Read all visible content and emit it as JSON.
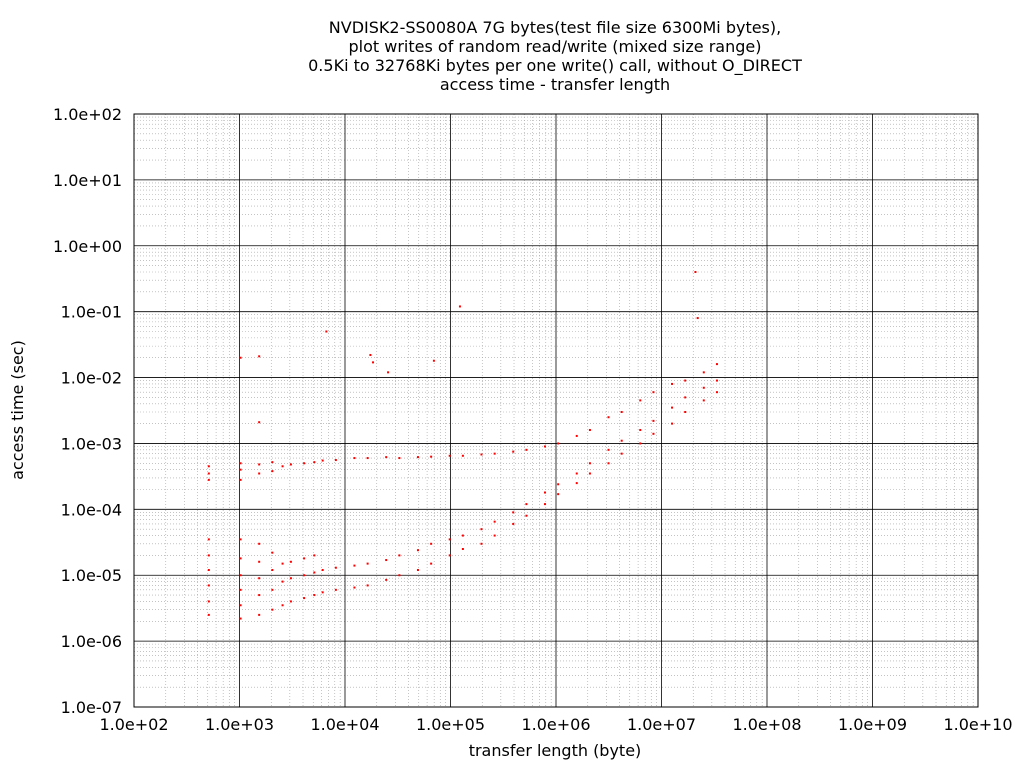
{
  "chart_data": {
    "type": "scatter",
    "title_lines": [
      "NVDISK2-SS0080A 7G bytes(test file size 6300Mi bytes),",
      "plot writes of random read/write (mixed size range)",
      "0.5Ki to 32768Ki bytes per one write() call, without O_DIRECT",
      "access time - transfer length"
    ],
    "xlabel": "transfer length (byte)",
    "ylabel": "access time (sec)",
    "x_scale": "log",
    "y_scale": "log",
    "xlim": [
      100,
      10000000000
    ],
    "ylim": [
      1e-07,
      100
    ],
    "x_tick_values": [
      100,
      1000,
      10000,
      100000,
      1000000,
      10000000,
      100000000,
      1000000000,
      10000000000
    ],
    "x_tick_labels": [
      "1.0e+02",
      "1.0e+03",
      "1.0e+04",
      "1.0e+05",
      "1.0e+06",
      "1.0e+07",
      "1.0e+08",
      "1.0e+09",
      "1.0e+10"
    ],
    "y_tick_values": [
      1e-07,
      1e-06,
      1e-05,
      0.0001,
      0.001,
      0.01,
      0.1,
      1,
      10,
      100
    ],
    "y_tick_labels": [
      "1.0e-07",
      "1.0e-06",
      "1.0e-05",
      "1.0e-04",
      "1.0e-03",
      "1.0e-02",
      "1.0e-01",
      "1.0e+00",
      "1.0e+01",
      "1.0e+02"
    ],
    "grid": true,
    "minor_grid": true,
    "point_color": "#ff0000",
    "series": [
      {
        "points": [
          [
            512,
            2.5e-06
          ],
          [
            512,
            4e-06
          ],
          [
            512,
            7e-06
          ],
          [
            512,
            1.2e-05
          ],
          [
            512,
            2e-05
          ],
          [
            512,
            3.5e-05
          ],
          [
            512,
            0.00028
          ],
          [
            512,
            0.00035
          ],
          [
            512,
            0.00045
          ],
          [
            1024,
            2.2e-06
          ],
          [
            1024,
            3.5e-06
          ],
          [
            1024,
            6e-06
          ],
          [
            1024,
            1e-05
          ],
          [
            1024,
            1.8e-05
          ],
          [
            1024,
            3.5e-05
          ],
          [
            1024,
            0.00028
          ],
          [
            1024,
            0.0004
          ],
          [
            1024,
            0.0005
          ],
          [
            1024,
            0.02
          ],
          [
            1536,
            2.5e-06
          ],
          [
            1536,
            5e-06
          ],
          [
            1536,
            9e-06
          ],
          [
            1536,
            1.6e-05
          ],
          [
            1536,
            3e-05
          ],
          [
            1536,
            0.00035
          ],
          [
            1536,
            0.00048
          ],
          [
            1536,
            0.0021
          ],
          [
            1536,
            0.021
          ],
          [
            2048,
            3e-06
          ],
          [
            2048,
            6e-06
          ],
          [
            2048,
            1.2e-05
          ],
          [
            2048,
            2.2e-05
          ],
          [
            2048,
            0.00038
          ],
          [
            2048,
            0.00052
          ],
          [
            2560,
            3.5e-06
          ],
          [
            2560,
            8e-06
          ],
          [
            2560,
            1.5e-05
          ],
          [
            2560,
            0.00045
          ],
          [
            3072,
            4e-06
          ],
          [
            3072,
            9e-06
          ],
          [
            3072,
            1.6e-05
          ],
          [
            3072,
            0.00048
          ],
          [
            4096,
            4.5e-06
          ],
          [
            4096,
            1e-05
          ],
          [
            4096,
            1.8e-05
          ],
          [
            4096,
            0.0005
          ],
          [
            5120,
            5e-06
          ],
          [
            5120,
            1.1e-05
          ],
          [
            5120,
            2e-05
          ],
          [
            5120,
            0.00052
          ],
          [
            6144,
            5.5e-06
          ],
          [
            6144,
            1.2e-05
          ],
          [
            6144,
            0.00055
          ],
          [
            6656,
            0.05
          ],
          [
            8192,
            6e-06
          ],
          [
            8192,
            1.3e-05
          ],
          [
            8192,
            0.00056
          ],
          [
            12288,
            6.5e-06
          ],
          [
            12288,
            1.4e-05
          ],
          [
            12288,
            0.0006
          ],
          [
            16384,
            7e-06
          ],
          [
            16384,
            1.5e-05
          ],
          [
            16384,
            0.0006
          ],
          [
            17408,
            0.022
          ],
          [
            18432,
            0.017
          ],
          [
            24576,
            8.5e-06
          ],
          [
            24576,
            1.7e-05
          ],
          [
            24576,
            0.00062
          ],
          [
            25600,
            0.012
          ],
          [
            32768,
            1e-05
          ],
          [
            32768,
            2e-05
          ],
          [
            32768,
            0.0006
          ],
          [
            49152,
            1.2e-05
          ],
          [
            49152,
            2.4e-05
          ],
          [
            49152,
            0.00062
          ],
          [
            65536,
            1.5e-05
          ],
          [
            65536,
            3e-05
          ],
          [
            65536,
            0.00063
          ],
          [
            69632,
            0.018
          ],
          [
            98304,
            2e-05
          ],
          [
            98304,
            3.5e-05
          ],
          [
            98304,
            0.00065
          ],
          [
            122880,
            0.12
          ],
          [
            131072,
            2.5e-05
          ],
          [
            131072,
            4e-05
          ],
          [
            131072,
            0.00065
          ],
          [
            196608,
            3e-05
          ],
          [
            196608,
            5e-05
          ],
          [
            196608,
            0.00068
          ],
          [
            262144,
            4e-05
          ],
          [
            262144,
            6.5e-05
          ],
          [
            262144,
            0.0007
          ],
          [
            393216,
            6e-05
          ],
          [
            393216,
            9e-05
          ],
          [
            393216,
            0.00075
          ],
          [
            524288,
            8e-05
          ],
          [
            524288,
            0.00012
          ],
          [
            524288,
            0.0008
          ],
          [
            786432,
            0.00012
          ],
          [
            786432,
            0.00018
          ],
          [
            786432,
            0.0009
          ],
          [
            1048576,
            0.00017
          ],
          [
            1048576,
            0.00024
          ],
          [
            1048576,
            0.001
          ],
          [
            1572864,
            0.00025
          ],
          [
            1572864,
            0.00035
          ],
          [
            1572864,
            0.0013
          ],
          [
            2097152,
            0.00035
          ],
          [
            2097152,
            0.0005
          ],
          [
            2097152,
            0.0016
          ],
          [
            3145728,
            0.0005
          ],
          [
            3145728,
            0.0008
          ],
          [
            3145728,
            0.0025
          ],
          [
            4194304,
            0.0007
          ],
          [
            4194304,
            0.0011
          ],
          [
            4194304,
            0.003
          ],
          [
            6291456,
            0.001
          ],
          [
            6291456,
            0.0016
          ],
          [
            6291456,
            0.0045
          ],
          [
            8388608,
            0.0014
          ],
          [
            8388608,
            0.0022
          ],
          [
            8388608,
            0.006
          ],
          [
            12582912,
            0.002
          ],
          [
            12582912,
            0.0035
          ],
          [
            12582912,
            0.008
          ],
          [
            16777216,
            0.003
          ],
          [
            16777216,
            0.005
          ],
          [
            16777216,
            0.009
          ],
          [
            20971520,
            0.4
          ],
          [
            22020096,
            0.08
          ],
          [
            25165824,
            0.0045
          ],
          [
            25165824,
            0.007
          ],
          [
            25165824,
            0.012
          ],
          [
            33554432,
            0.006
          ],
          [
            33554432,
            0.009
          ],
          [
            33554432,
            0.016
          ]
        ]
      }
    ]
  }
}
